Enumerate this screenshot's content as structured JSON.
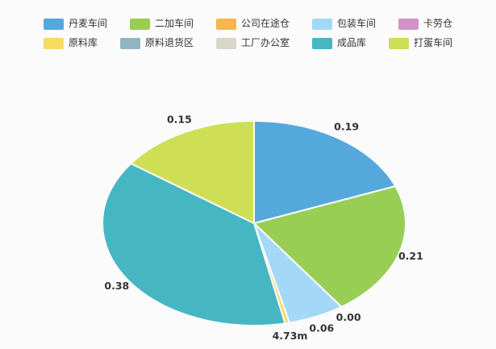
{
  "background_color": "#fbfbfb",
  "chart_data": {
    "type": "pie",
    "title": "",
    "legend_position": "top",
    "legend_rows": 2,
    "items_per_row": 5,
    "label_color": "#333333",
    "series": [
      {
        "name": "丹麦车间",
        "value": 0.19,
        "label": "0.19",
        "color": "#55a8dc",
        "label_visible": true
      },
      {
        "name": "二加车间",
        "value": 0.21,
        "label": "0.21",
        "color": "#99ce55",
        "label_visible": true
      },
      {
        "name": "公司在途仓",
        "value": 0.0,
        "label": "0.00",
        "color": "#f8b551",
        "label_visible": true
      },
      {
        "name": "包装车间",
        "value": 0.06,
        "label": "0.06",
        "color": "#a3d9f7",
        "label_visible": true
      },
      {
        "name": "卡劳仓",
        "value": 0.0,
        "label": "",
        "color": "#d094c9",
        "label_visible": false
      },
      {
        "name": "原料库",
        "value": 0.00473,
        "label": "4.73m",
        "color": "#fadb61",
        "label_visible": true
      },
      {
        "name": "原料退货区",
        "value": 0.0,
        "label": "",
        "color": "#92b5c2",
        "label_visible": false
      },
      {
        "name": "工厂办公室",
        "value": 0.0,
        "label": "",
        "color": "#d8d6c9",
        "label_visible": false
      },
      {
        "name": "成品库",
        "value": 0.38,
        "label": "0.38",
        "color": "#47b6c3",
        "label_visible": true
      },
      {
        "name": "打蛋车间",
        "value": 0.15,
        "label": "0.15",
        "color": "#cedf55",
        "label_visible": true
      }
    ]
  }
}
